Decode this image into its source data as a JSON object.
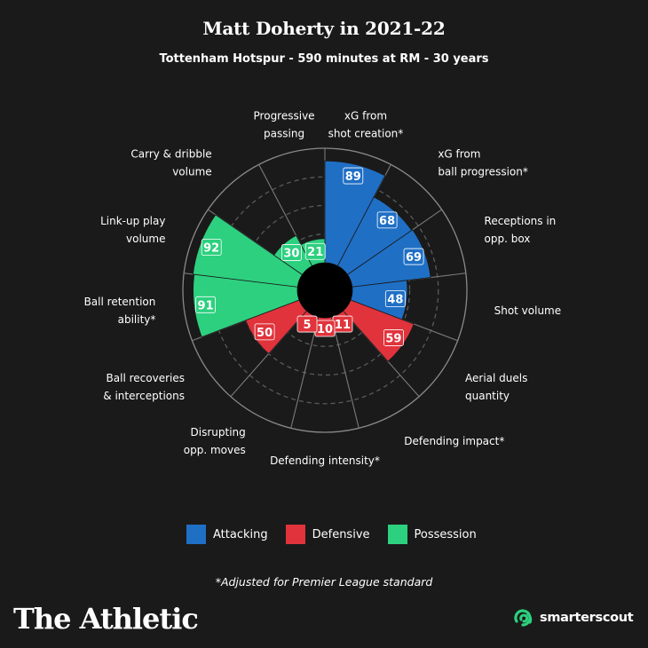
{
  "title": "Matt Doherty in 2021-22",
  "subtitle": "Tottenham Hotspur - 590 minutes at RM - 30 years",
  "chart_data": {
    "type": "polar_bar",
    "title": "Matt Doherty in 2021-22",
    "subtitle": "Tottenham Hotspur - 590 minutes at RM - 30 years",
    "rlim": [
      0,
      100
    ],
    "grid": true,
    "categories": [
      {
        "label": [
          "xG from",
          "shot creation*"
        ],
        "value": 89,
        "group": "Attacking"
      },
      {
        "label": [
          "xG from",
          "ball progression*"
        ],
        "value": 68,
        "group": "Attacking"
      },
      {
        "label": [
          "Receptions in",
          "opp. box"
        ],
        "value": 69,
        "group": "Attacking"
      },
      {
        "label": [
          "Shot volume"
        ],
        "value": 48,
        "group": "Attacking"
      },
      {
        "label": [
          "Aerial duels",
          "quantity"
        ],
        "value": 59,
        "group": "Defensive"
      },
      {
        "label": [
          "Defending impact*"
        ],
        "value": 11,
        "group": "Defensive"
      },
      {
        "label": [
          "Defending intensity*"
        ],
        "value": 10,
        "group": "Defensive"
      },
      {
        "label": [
          "Disrupting",
          "opp. moves"
        ],
        "value": 5,
        "group": "Defensive"
      },
      {
        "label": [
          "Ball recoveries",
          "& interceptions"
        ],
        "value": 50,
        "group": "Defensive"
      },
      {
        "label": [
          "Ball retention",
          "ability*"
        ],
        "value": 91,
        "group": "Possession"
      },
      {
        "label": [
          "Link-up play",
          "volume"
        ],
        "value": 92,
        "group": "Possession"
      },
      {
        "label": [
          "Carry & dribble",
          "volume"
        ],
        "value": 30,
        "group": "Possession"
      },
      {
        "label": [
          "Progressive",
          "passing"
        ],
        "value": 21,
        "group": "Possession"
      }
    ],
    "legend": [
      {
        "name": "Attacking",
        "color": "#1f6fc5"
      },
      {
        "name": "Defensive",
        "color": "#e0333c"
      },
      {
        "name": "Possession",
        "color": "#2dd07f"
      }
    ],
    "legend_position": "bottom"
  },
  "footnote": "*Adjusted for Premier League standard",
  "brand": {
    "athletic": "The Athletic",
    "smarterscout": "smarterscout"
  },
  "colors": {
    "background": "#1a1a1a",
    "attacking": "#1f6fc5",
    "defensive": "#e0333c",
    "possession": "#2dd07f",
    "smarterscout": "#2dd07f"
  }
}
